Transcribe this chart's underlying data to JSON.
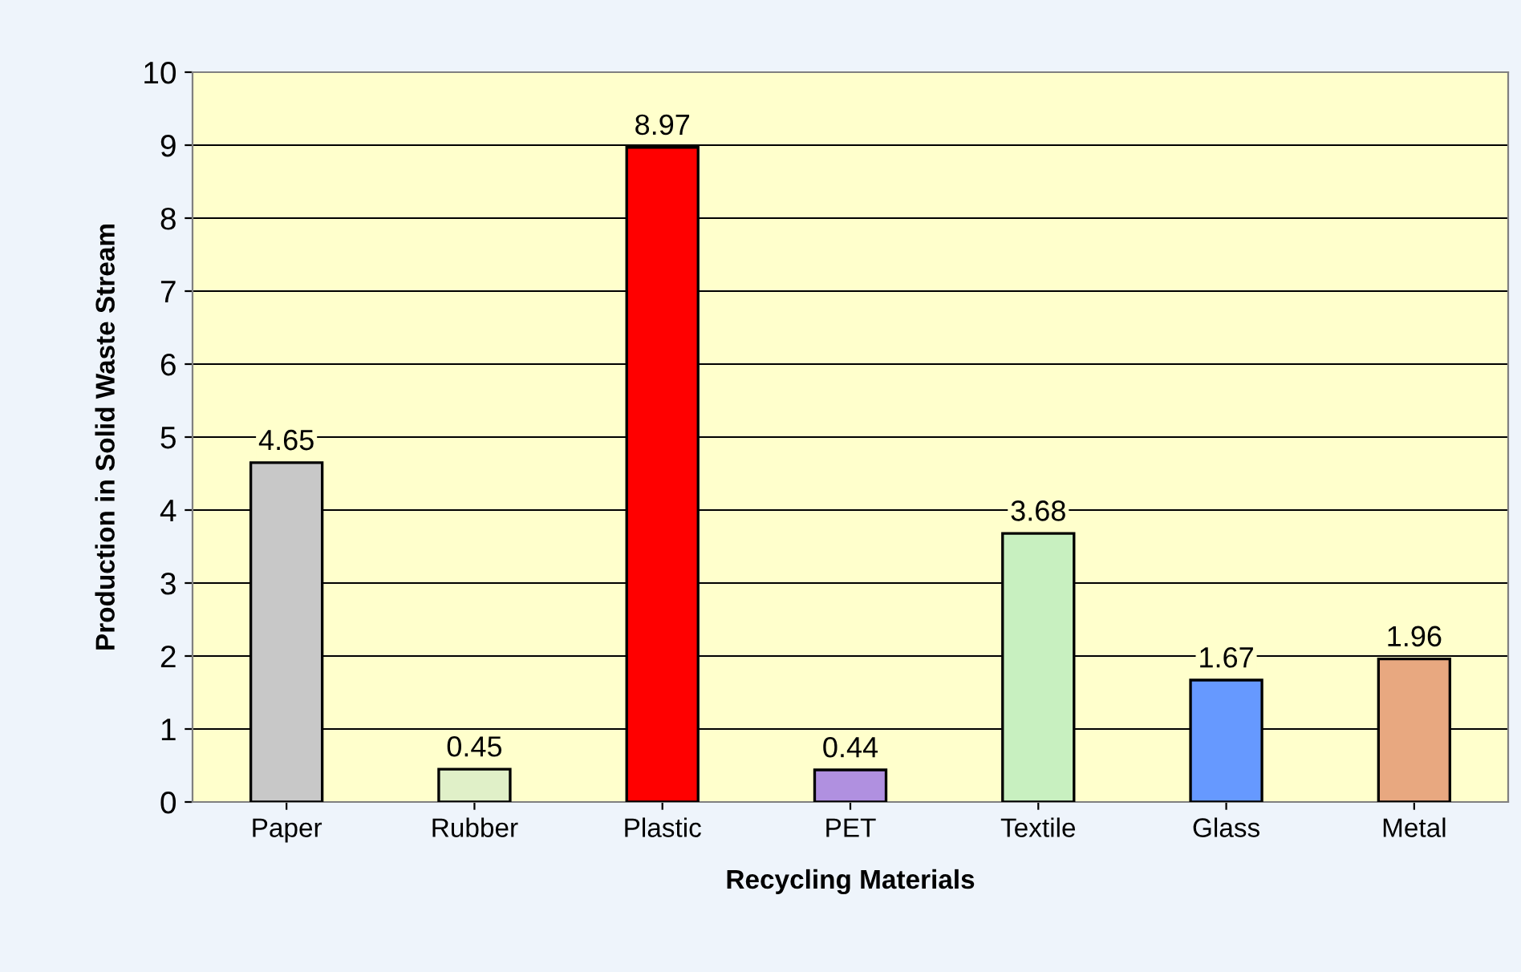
{
  "chart_data": {
    "type": "bar",
    "xlabel": "Recycling Materials",
    "ylabel": "Production in Solid Waste Stream",
    "categories": [
      "Paper",
      "Rubber",
      "Plastic",
      "PET",
      "Textile",
      "Glass",
      "Metal"
    ],
    "values": [
      4.65,
      0.45,
      8.97,
      0.44,
      3.68,
      1.67,
      1.96
    ],
    "colors": [
      "#c8c8c8",
      "#e0f0c8",
      "#ff0000",
      "#b090e0",
      "#c8f0c0",
      "#6699ff",
      "#e8a880"
    ],
    "ylim": [
      0,
      10
    ],
    "yticks": [
      0,
      1,
      2,
      3,
      4,
      5,
      6,
      7,
      8,
      9,
      10
    ],
    "grid": "y",
    "data_labels": true
  }
}
